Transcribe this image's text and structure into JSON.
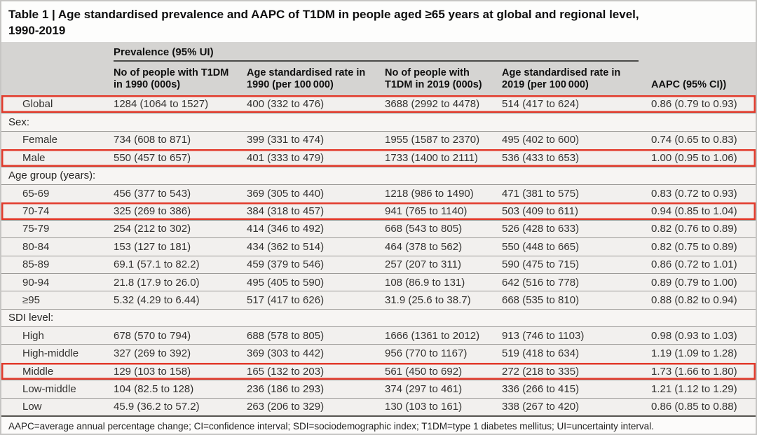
{
  "title_line1": "Table 1 | Age standardised prevalence and AAPC of T1DM in people aged ≥65 years at global and regional level,",
  "title_line2": "1990-2019",
  "table": {
    "spanner": "Prevalence (95% UI)",
    "columns": [
      "No of people with T1DM in 1990 (000s)",
      "Age standardised rate in 1990 (per 100 000)",
      "No of people with T1DM in 2019 (000s)",
      "Age standardised rate in 2019 (per 100 000)",
      "AAPC (95% CI))"
    ],
    "rows": [
      {
        "label": "Global",
        "type": "data",
        "highlighted": true,
        "values": [
          "1284 (1064 to 1527)",
          "400 (332 to 476)",
          "3688 (2992 to 4478)",
          "514 (417 to 624)",
          "0.86 (0.79 to 0.93)"
        ]
      },
      {
        "label": "Sex:",
        "type": "section",
        "highlighted": false,
        "values": []
      },
      {
        "label": "Female",
        "type": "data",
        "highlighted": false,
        "values": [
          "734 (608 to 871)",
          "399 (331 to 474)",
          "1955 (1587 to 2370)",
          "495 (402 to 600)",
          "0.74 (0.65 to 0.83)"
        ]
      },
      {
        "label": "Male",
        "type": "data",
        "highlighted": true,
        "values": [
          "550 (457 to 657)",
          "401 (333 to 479)",
          "1733 (1400 to 2111)",
          "536 (433 to 653)",
          "1.00 (0.95 to 1.06)"
        ]
      },
      {
        "label": "Age group (years):",
        "type": "section",
        "highlighted": false,
        "values": []
      },
      {
        "label": "65-69",
        "type": "data",
        "highlighted": false,
        "values": [
          "456 (377 to 543)",
          "369 (305 to 440)",
          "1218 (986 to 1490)",
          "471 (381 to 575)",
          "0.83 (0.72 to 0.93)"
        ]
      },
      {
        "label": "70-74",
        "type": "data",
        "highlighted": true,
        "values": [
          "325 (269 to 386)",
          "384 (318 to 457)",
          "941 (765 to 1140)",
          "503 (409 to 611)",
          "0.94 (0.85 to 1.04)"
        ]
      },
      {
        "label": "75-79",
        "type": "data",
        "highlighted": false,
        "values": [
          "254 (212 to 302)",
          "414 (346 to 492)",
          "668 (543 to 805)",
          "526 (428 to 633)",
          "0.82 (0.76 to 0.89)"
        ]
      },
      {
        "label": "80-84",
        "type": "data",
        "highlighted": false,
        "values": [
          "153 (127 to 181)",
          "434 (362 to 514)",
          "464 (378 to 562)",
          "550 (448 to 665)",
          "0.82 (0.75 to 0.89)"
        ]
      },
      {
        "label": "85-89",
        "type": "data",
        "highlighted": false,
        "values": [
          "69.1 (57.1 to 82.2)",
          "459 (379 to 546)",
          "257 (207 to 311)",
          "590 (475 to 715)",
          "0.86 (0.72 to 1.01)"
        ]
      },
      {
        "label": "90-94",
        "type": "data",
        "highlighted": false,
        "values": [
          "21.8 (17.9 to 26.0)",
          "495 (405 to 590)",
          "108 (86.9 to 131)",
          "642 (516 to 778)",
          "0.89 (0.79 to 1.00)"
        ]
      },
      {
        "label": "≥95",
        "type": "data",
        "highlighted": false,
        "values": [
          "5.32 (4.29 to 6.44)",
          "517 (417 to 626)",
          "31.9 (25.6 to 38.7)",
          "668 (535 to 810)",
          "0.88 (0.82 to 0.94)"
        ]
      },
      {
        "label": "SDI level:",
        "type": "section",
        "highlighted": false,
        "values": []
      },
      {
        "label": "High",
        "type": "data",
        "highlighted": false,
        "values": [
          "678 (570 to 794)",
          "688 (578 to 805)",
          "1666 (1361 to 2012)",
          "913 (746 to 1103)",
          "0.98 (0.93 to 1.03)"
        ]
      },
      {
        "label": "High-middle",
        "type": "data",
        "highlighted": false,
        "values": [
          "327 (269 to 392)",
          "369 (303 to 442)",
          "956 (770 to 1167)",
          "519 (418 to 634)",
          "1.19 (1.09 to 1.28)"
        ]
      },
      {
        "label": "Middle",
        "type": "data",
        "highlighted": true,
        "values": [
          "129 (103 to 158)",
          "165 (132 to 203)",
          "561 (450 to 692)",
          "272 (218 to 335)",
          "1.73 (1.66 to 1.80)"
        ]
      },
      {
        "label": "Low-middle",
        "type": "data",
        "highlighted": false,
        "values": [
          "104 (82.5 to 128)",
          "236 (186 to 293)",
          "374 (297 to 461)",
          "336 (266 to 415)",
          "1.21 (1.12 to 1.29)"
        ]
      },
      {
        "label": "Low",
        "type": "data",
        "highlighted": false,
        "values": [
          "45.9 (36.2 to 57.2)",
          "263 (206 to 329)",
          "130 (103 to 161)",
          "338 (267 to 420)",
          "0.86 (0.85 to 0.88)"
        ]
      }
    ]
  },
  "footnote": "AAPC=average annual percentage change; CI=confidence interval; SDI=sociodemographic index; T1DM=type 1 diabetes mellitus; UI=uncertainty interval.",
  "colors": {
    "header_bg": "#d5d4d2",
    "row_bg": "#f2f0ee",
    "highlight_box_red": "#e23a2b"
  }
}
